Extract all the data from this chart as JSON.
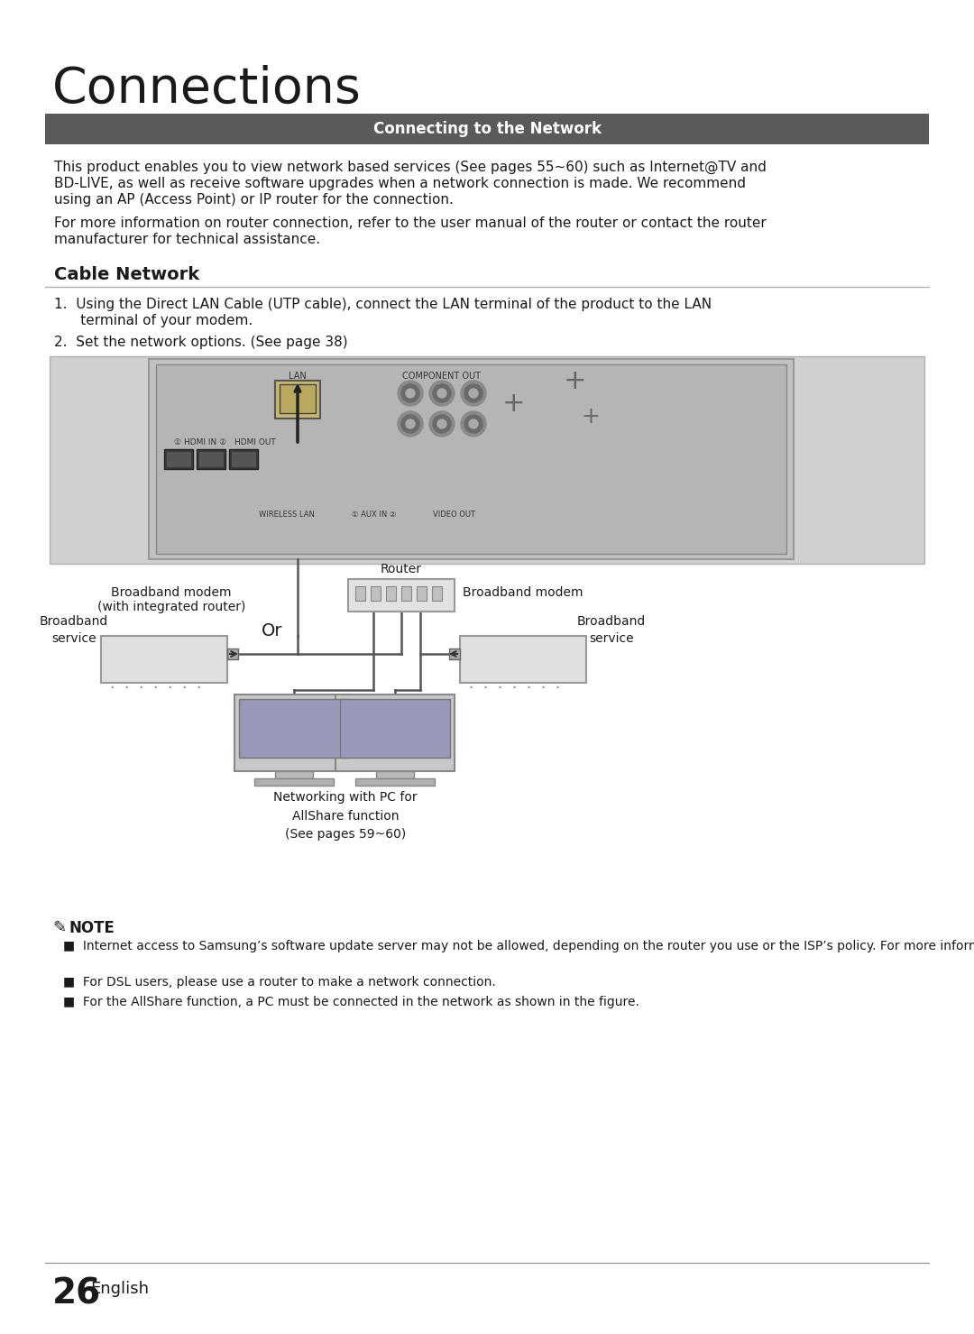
{
  "title": "Connections",
  "section_header": "Connecting to the Network",
  "section_header_bg": "#5a5a5a",
  "section_header_fg": "#ffffff",
  "body_para1_line1": "This product enables you to view network based services (See pages 55~60) such as Internet@TV and",
  "body_para1_line2": "BD-LIVE, as well as receive software upgrades when a network connection is made. We recommend",
  "body_para1_line3": "using an AP (Access Point) or IP router for the connection.",
  "body_para2_line1": "For more information on router connection, refer to the user manual of the router or contact the router",
  "body_para2_line2": "manufacturer for technical assistance.",
  "section2": "Cable Network",
  "step1a": "1.  Using the Direct LAN Cable (UTP cable), connect the LAN terminal of the product to the LAN",
  "step1b": "      terminal of your modem.",
  "step2": "2.  Set the network options. (See page 38)",
  "note_header": "NOTE",
  "note1": "Internet access to Samsung’s software update server may not be allowed, depending on the router you use or the ISP’s policy. For more information, contact your ISP (Internet Service Provider).",
  "note2": "For DSL users, please use a router to make a network connection.",
  "note3": "For the AllShare function, a PC must be connected in the network as shown in the figure.",
  "page_num": "26",
  "page_lang": "English",
  "d_lan": "LAN",
  "d_component_out": "COMPONENT OUT",
  "d_hdmi_in": "① HDMI IN ②",
  "d_hdmi_out": "HDMI OUT",
  "d_wireless_lan": "WIRELESS LAN",
  "d_aux_in": "① AUX IN ②",
  "d_video_out": "VIDEO OUT",
  "d_broadband_modem_l1": "Broadband modem",
  "d_broadband_modem_l2": "(with integrated router)",
  "d_broadband_service_l": "Broadband\nservice",
  "d_or": "Or",
  "d_router": "Router",
  "d_broadband_modem_r": "Broadband modem",
  "d_broadband_service_r": "Broadband\nservice",
  "d_networking": "Networking with PC for\nAllShare function\n(See pages 59~60)",
  "bg": "#ffffff",
  "fg": "#1a1a1a",
  "gray_line": "#b0b0b0",
  "panel_bg": "#c0c0c0",
  "modem_bg": "#e0e0e0",
  "diagram_bg": "#d0d0d0"
}
